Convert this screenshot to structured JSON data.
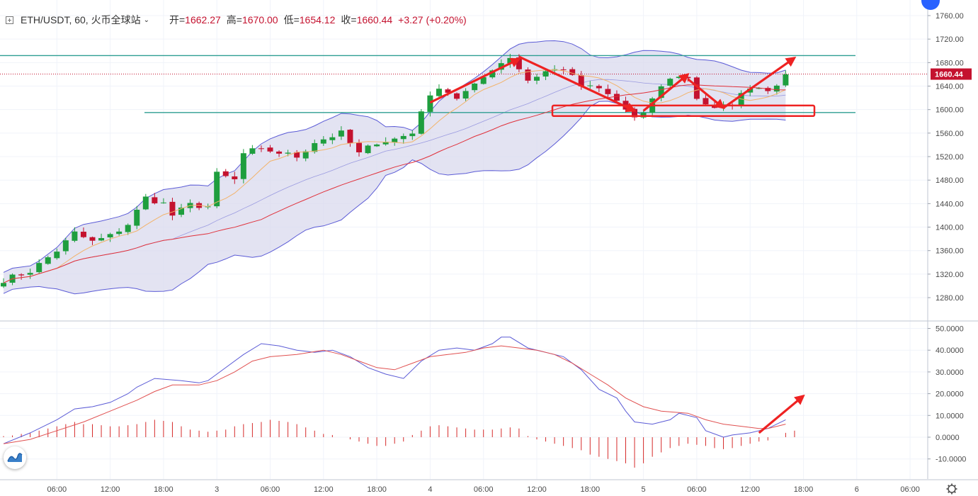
{
  "legend": {
    "symbol": "box-plus-icon",
    "symbol_label": "ETH/USDT, 60, 火币全球站",
    "open_label": "开=",
    "open_value": "1662.27",
    "high_label": "高=",
    "high_value": "1670.00",
    "low_label": "低=",
    "low_value": "1654.12",
    "close_label": "收=",
    "close_value": "1660.44",
    "change": "+3.27 (+0.20%)"
  },
  "colors": {
    "up": "#1e9e3e",
    "down": "#c4122f",
    "band_fill": "#d9d9ee",
    "band_line": "#5b5bd6",
    "ma_short": "#f2b36b",
    "ma_long": "#e0303a",
    "level_line": "#2e9e92",
    "annotation": "#ee2222",
    "dif": "#5b5bd6",
    "dea": "#e05050",
    "hist": "#d62a2a"
  },
  "icons": {
    "logo": "chart-logo-icon",
    "settings": "gear-icon",
    "corner": "blue-dot-icon"
  },
  "chart_data": [
    {
      "type": "candlestick",
      "title": "ETH/USDT, 60, 火币全球站",
      "xlabel": "",
      "ylabel": "",
      "ylim": [
        1240,
        1770
      ],
      "y_ticks": [
        "1760.00",
        "1720.00",
        "1680.00",
        "1640.00",
        "1600.00",
        "1560.00",
        "1520.00",
        "1480.00",
        "1440.00",
        "1400.00",
        "1360.00",
        "1320.00",
        "1280.00"
      ],
      "last_price_label": "1660.44",
      "x_ticks": [
        {
          "hour": 6,
          "label": "06:00"
        },
        {
          "hour": 12,
          "label": "12:00"
        },
        {
          "hour": 18,
          "label": "18:00"
        },
        {
          "hour": 24,
          "label": "3"
        },
        {
          "hour": 30,
          "label": "06:00"
        },
        {
          "hour": 36,
          "label": "12:00"
        },
        {
          "hour": 42,
          "label": "18:00"
        },
        {
          "hour": 48,
          "label": "4"
        },
        {
          "hour": 54,
          "label": "06:00"
        },
        {
          "hour": 60,
          "label": "12:00"
        },
        {
          "hour": 66,
          "label": "18:00"
        },
        {
          "hour": 72,
          "label": "5"
        },
        {
          "hour": 78,
          "label": "06:00"
        },
        {
          "hour": 84,
          "label": "12:00"
        },
        {
          "hour": 90,
          "label": "18:00"
        },
        {
          "hour": 96,
          "label": "6"
        },
        {
          "hour": 102,
          "label": "06:00"
        }
      ],
      "horizontal_levels": [
        1692,
        1595
      ],
      "annotation_box": {
        "y_top": 1607,
        "y_bottom": 1589
      },
      "close_checkpoints": [
        {
          "hour": 0,
          "close": 1310
        },
        {
          "hour": 3,
          "close": 1325
        },
        {
          "hour": 6,
          "close": 1360
        },
        {
          "hour": 8,
          "close": 1390
        },
        {
          "hour": 10,
          "close": 1375
        },
        {
          "hour": 12,
          "close": 1385
        },
        {
          "hour": 14,
          "close": 1405
        },
        {
          "hour": 16,
          "close": 1450
        },
        {
          "hour": 18,
          "close": 1440
        },
        {
          "hour": 19,
          "close": 1420
        },
        {
          "hour": 21,
          "close": 1438
        },
        {
          "hour": 23,
          "close": 1435
        },
        {
          "hour": 24,
          "close": 1490
        },
        {
          "hour": 26,
          "close": 1480
        },
        {
          "hour": 27,
          "close": 1525
        },
        {
          "hour": 28,
          "close": 1530
        },
        {
          "hour": 30,
          "close": 1530
        },
        {
          "hour": 33,
          "close": 1520
        },
        {
          "hour": 35,
          "close": 1545
        },
        {
          "hour": 38,
          "close": 1560
        },
        {
          "hour": 40,
          "close": 1525
        },
        {
          "hour": 42,
          "close": 1545
        },
        {
          "hour": 44,
          "close": 1550
        },
        {
          "hour": 46,
          "close": 1560
        },
        {
          "hour": 47,
          "close": 1600
        },
        {
          "hour": 49,
          "close": 1640
        },
        {
          "hour": 51,
          "close": 1620
        },
        {
          "hour": 53,
          "close": 1640
        },
        {
          "hour": 55,
          "close": 1670
        },
        {
          "hour": 57,
          "close": 1690
        },
        {
          "hour": 58,
          "close": 1670
        },
        {
          "hour": 59,
          "close": 1650
        },
        {
          "hour": 61,
          "close": 1665
        },
        {
          "hour": 63,
          "close": 1670
        },
        {
          "hour": 65,
          "close": 1640
        },
        {
          "hour": 67,
          "close": 1635
        },
        {
          "hour": 69,
          "close": 1615
        },
        {
          "hour": 71,
          "close": 1585
        },
        {
          "hour": 72,
          "close": 1590
        },
        {
          "hour": 73,
          "close": 1620
        },
        {
          "hour": 75,
          "close": 1655
        },
        {
          "hour": 77,
          "close": 1655
        },
        {
          "hour": 78,
          "close": 1620
        },
        {
          "hour": 80,
          "close": 1600
        },
        {
          "hour": 82,
          "close": 1610
        },
        {
          "hour": 84,
          "close": 1640
        },
        {
          "hour": 86,
          "close": 1635
        },
        {
          "hour": 88,
          "close": 1655
        },
        {
          "hour": 88.5,
          "close": 1660
        }
      ],
      "trend_arrows": [
        {
          "from": [
            48,
            1612
          ],
          "to": [
            58,
            1686
          ]
        },
        {
          "from": [
            58,
            1690
          ],
          "to": [
            71,
            1598
          ]
        },
        {
          "from": [
            72,
            1598
          ],
          "to": [
            77,
            1660
          ]
        },
        {
          "from": [
            77,
            1652
          ],
          "to": [
            81,
            1603
          ]
        },
        {
          "from": [
            81,
            1603
          ],
          "to": [
            89,
            1688
          ]
        }
      ]
    },
    {
      "type": "line",
      "title": "",
      "xlabel": "",
      "ylabel": "",
      "ylim": [
        -15,
        52
      ],
      "y_ticks": [
        "50.0000",
        "40.0000",
        "30.0000",
        "20.0000",
        "10.0000",
        "0.0000",
        "-10.0000"
      ],
      "series": [
        {
          "line": "dif",
          "points": [
            [
              0,
              -3
            ],
            [
              3,
              2
            ],
            [
              6,
              8
            ],
            [
              8,
              13
            ],
            [
              10,
              14
            ],
            [
              12,
              16
            ],
            [
              14,
              20
            ],
            [
              15,
              23
            ],
            [
              17,
              27
            ],
            [
              20,
              26
            ],
            [
              22,
              25
            ],
            [
              23,
              26
            ],
            [
              24,
              29
            ],
            [
              27,
              38
            ],
            [
              29,
              43
            ],
            [
              31,
              42
            ],
            [
              33,
              40
            ],
            [
              35,
              39
            ],
            [
              37,
              40
            ],
            [
              39,
              37
            ],
            [
              41,
              32
            ],
            [
              43,
              29
            ],
            [
              45,
              27
            ],
            [
              47,
              35
            ],
            [
              49,
              40
            ],
            [
              51,
              41
            ],
            [
              53,
              40
            ],
            [
              55,
              43
            ],
            [
              56,
              46
            ],
            [
              57,
              46
            ],
            [
              59,
              41
            ],
            [
              61,
              39
            ],
            [
              63,
              37
            ],
            [
              65,
              31
            ],
            [
              67,
              22
            ],
            [
              69,
              18
            ],
            [
              70,
              12
            ],
            [
              71,
              7
            ],
            [
              73,
              6
            ],
            [
              75,
              8
            ],
            [
              76,
              11
            ],
            [
              78,
              9
            ],
            [
              79,
              3
            ],
            [
              81,
              0
            ],
            [
              82,
              1
            ],
            [
              84,
              2
            ],
            [
              85,
              3
            ],
            [
              86,
              4
            ],
            [
              88,
              8
            ]
          ]
        },
        {
          "line": "dea",
          "points": [
            [
              0,
              -3
            ],
            [
              3,
              -1
            ],
            [
              6,
              3
            ],
            [
              9,
              7
            ],
            [
              12,
              12
            ],
            [
              15,
              17
            ],
            [
              17,
              21
            ],
            [
              19,
              24
            ],
            [
              22,
              24
            ],
            [
              24,
              26
            ],
            [
              26,
              30
            ],
            [
              28,
              35
            ],
            [
              30,
              37
            ],
            [
              33,
              38
            ],
            [
              36,
              40
            ],
            [
              38,
              38
            ],
            [
              40,
              35
            ],
            [
              42,
              32
            ],
            [
              44,
              31
            ],
            [
              46,
              34
            ],
            [
              48,
              37
            ],
            [
              50,
              38
            ],
            [
              52,
              39
            ],
            [
              54,
              41
            ],
            [
              56,
              42
            ],
            [
              58,
              41
            ],
            [
              60,
              40
            ],
            [
              62,
              38
            ],
            [
              64,
              34
            ],
            [
              66,
              29
            ],
            [
              68,
              24
            ],
            [
              70,
              18
            ],
            [
              72,
              14
            ],
            [
              74,
              12
            ],
            [
              77,
              11
            ],
            [
              79,
              8
            ],
            [
              81,
              6
            ],
            [
              83,
              5
            ],
            [
              85,
              4
            ],
            [
              86,
              4
            ],
            [
              88,
              6
            ]
          ]
        }
      ],
      "histogram": [
        [
          0,
          0.5
        ],
        [
          1,
          0.8
        ],
        [
          2,
          1.5
        ],
        [
          3,
          2
        ],
        [
          4,
          3
        ],
        [
          5,
          4
        ],
        [
          6,
          5
        ],
        [
          7,
          6
        ],
        [
          8,
          7
        ],
        [
          9,
          6
        ],
        [
          10,
          6
        ],
        [
          11,
          5.5
        ],
        [
          12,
          5
        ],
        [
          13,
          5
        ],
        [
          14,
          5.5
        ],
        [
          15,
          6
        ],
        [
          16,
          7
        ],
        [
          17,
          8
        ],
        [
          18,
          7.5
        ],
        [
          19,
          7
        ],
        [
          20,
          5
        ],
        [
          21,
          3.5
        ],
        [
          22,
          3
        ],
        [
          23,
          2.5
        ],
        [
          24,
          3
        ],
        [
          25,
          3.5
        ],
        [
          26,
          5
        ],
        [
          27,
          6
        ],
        [
          28,
          6.5
        ],
        [
          29,
          7
        ],
        [
          30,
          8
        ],
        [
          31,
          7.5
        ],
        [
          32,
          7
        ],
        [
          33,
          6
        ],
        [
          34,
          4.5
        ],
        [
          35,
          3
        ],
        [
          36,
          1.5
        ],
        [
          37,
          1
        ],
        [
          38,
          0
        ],
        [
          39,
          -1
        ],
        [
          40,
          -2
        ],
        [
          41,
          -3
        ],
        [
          42,
          -4
        ],
        [
          43,
          -4
        ],
        [
          44,
          -3
        ],
        [
          45,
          -2
        ],
        [
          46,
          1
        ],
        [
          47,
          3
        ],
        [
          48,
          5
        ],
        [
          49,
          5.5
        ],
        [
          50,
          5
        ],
        [
          51,
          4.5
        ],
        [
          52,
          4
        ],
        [
          53,
          3.5
        ],
        [
          54,
          3.5
        ],
        [
          55,
          3.5
        ],
        [
          56,
          4
        ],
        [
          57,
          4.5
        ],
        [
          58,
          4
        ],
        [
          59,
          0.5
        ],
        [
          60,
          -1
        ],
        [
          61,
          -2
        ],
        [
          62,
          -3
        ],
        [
          63,
          -4
        ],
        [
          64,
          -5
        ],
        [
          65,
          -6
        ],
        [
          66,
          -8
        ],
        [
          67,
          -9
        ],
        [
          68,
          -10
        ],
        [
          69,
          -11
        ],
        [
          70,
          -12
        ],
        [
          71,
          -14
        ],
        [
          72,
          -12
        ],
        [
          73,
          -9
        ],
        [
          74,
          -7
        ],
        [
          75,
          -5
        ],
        [
          76,
          -4
        ],
        [
          77,
          -3
        ],
        [
          78,
          -3.5
        ],
        [
          79,
          -4
        ],
        [
          80,
          -5
        ],
        [
          81,
          -5.5
        ],
        [
          82,
          -5
        ],
        [
          83,
          -4
        ],
        [
          84,
          -3
        ],
        [
          85,
          -2
        ],
        [
          86,
          -1.5
        ],
        [
          87,
          0
        ],
        [
          88,
          2
        ],
        [
          89,
          3
        ]
      ],
      "trend_arrows": [
        {
          "from": [
            85,
            2
          ],
          "to": [
            90,
            19
          ]
        }
      ]
    }
  ]
}
